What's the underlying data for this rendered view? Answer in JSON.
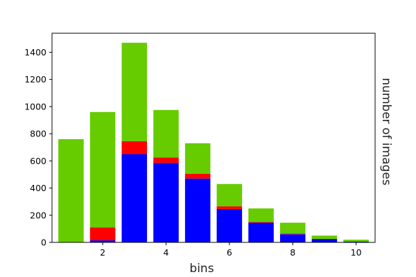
{
  "chart_data": {
    "type": "bar",
    "stacked": true,
    "x": [
      1,
      2,
      3,
      4,
      5,
      6,
      7,
      8,
      9,
      10
    ],
    "series": [
      {
        "color": "#0000ff",
        "values": [
          0,
          15,
          650,
          585,
          470,
          245,
          145,
          60,
          25,
          5
        ]
      },
      {
        "color": "#ff0000",
        "values": [
          0,
          95,
          95,
          40,
          35,
          20,
          5,
          5,
          0,
          0
        ]
      },
      {
        "color": "#66cc00",
        "values": [
          760,
          850,
          725,
          350,
          225,
          165,
          100,
          80,
          25,
          15
        ]
      }
    ],
    "xlabel": "bins",
    "ylabel": "number of images",
    "xlim": [
      0.4,
      10.6
    ],
    "ylim": [
      0,
      1540
    ],
    "x_ticks": [
      2,
      4,
      6,
      8,
      10
    ],
    "y_ticks": [
      0,
      200,
      400,
      600,
      800,
      1000,
      1200,
      1400
    ],
    "x_tick_labels": [
      "2",
      "4",
      "6",
      "8",
      "10"
    ],
    "y_tick_labels": [
      "0",
      "200",
      "400",
      "600",
      "800",
      "1000",
      "1200",
      "1400"
    ],
    "grid": false,
    "legend": "none"
  }
}
